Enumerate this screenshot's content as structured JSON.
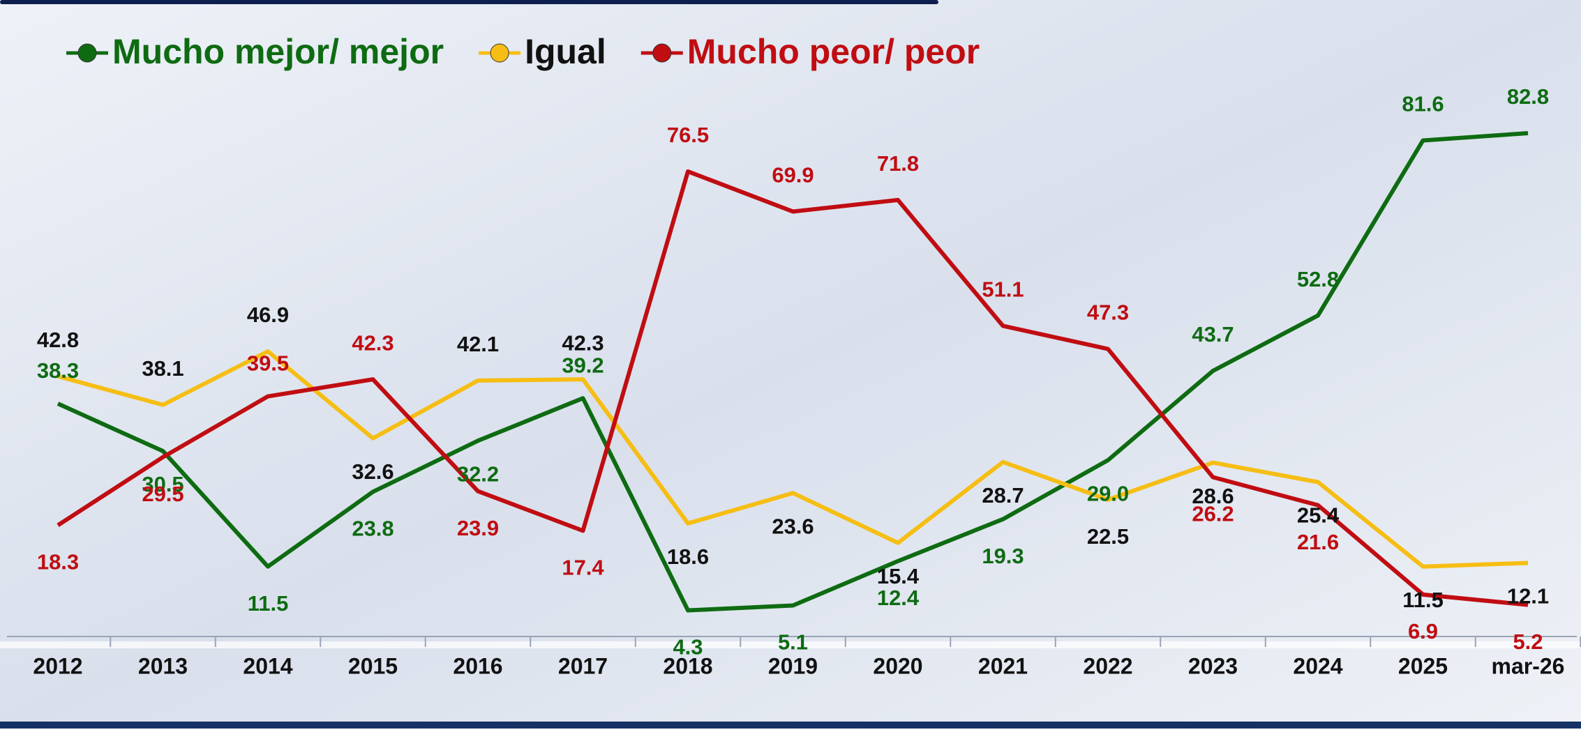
{
  "chart_data": {
    "type": "line",
    "categories": [
      "2012",
      "2013",
      "2014",
      "2015",
      "2016",
      "2017",
      "2018",
      "2019",
      "2020",
      "2021",
      "2022",
      "2023",
      "2024",
      "2025",
      "mar-26"
    ],
    "series": [
      {
        "name": "Mucho mejor/ mejor",
        "color": "#0e6b12",
        "label_color": "#0e6b12",
        "values": [
          38.3,
          30.5,
          11.5,
          23.8,
          32.2,
          39.2,
          4.3,
          5.1,
          12.4,
          19.3,
          29.0,
          43.7,
          52.8,
          81.6,
          82.8
        ],
        "value_labels": [
          "38.3",
          "30.5",
          "11.5",
          "23.8",
          "32.2",
          "39.2",
          "4.3",
          "5.1",
          "12.4",
          "19.3",
          "29.0",
          "43.7",
          "52.8",
          "81.6",
          "82.8"
        ]
      },
      {
        "name": "Igual",
        "color": "#f6be14",
        "label_color": "#111111",
        "values": [
          42.8,
          38.1,
          46.9,
          32.6,
          42.1,
          42.3,
          18.6,
          23.6,
          15.4,
          28.7,
          22.5,
          28.6,
          25.4,
          11.5,
          12.1
        ]
      },
      {
        "name": "Mucho peor/ peor",
        "color": "#c00d12",
        "label_color": "#c00d12",
        "values": [
          18.3,
          29.5,
          39.5,
          42.3,
          23.9,
          17.4,
          76.5,
          69.9,
          71.8,
          51.1,
          47.3,
          26.2,
          21.6,
          6.9,
          5.2
        ]
      }
    ]
  }
}
